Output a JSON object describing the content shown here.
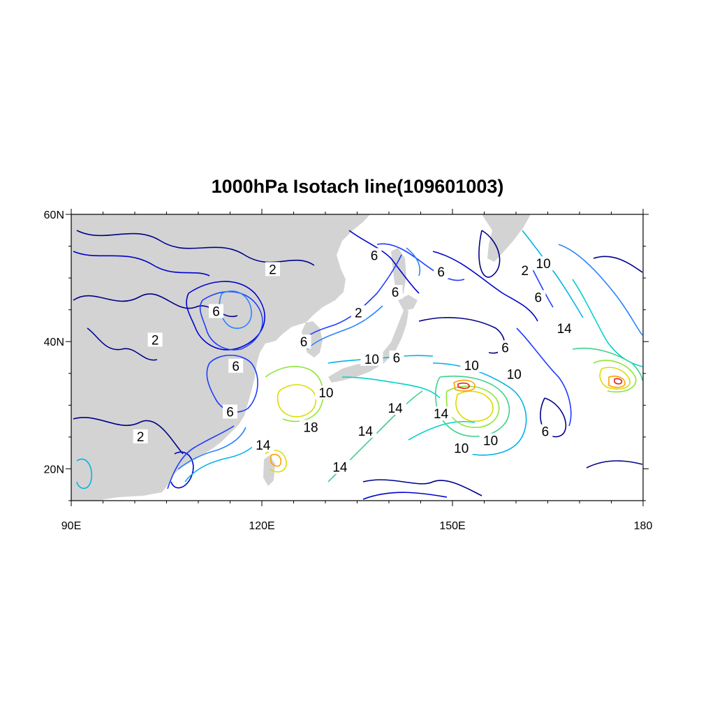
{
  "title": "1000hPa Isotach line(109601003)",
  "map": {
    "projection": "cylindrical-equidistant",
    "lon_range": [
      90,
      180
    ],
    "lat_range": [
      15,
      60
    ],
    "land_color": "#d3d3d3",
    "ocean_color": "#ffffff",
    "lon_ticks": [
      {
        "value": 90,
        "label": "90E"
      },
      {
        "value": 120,
        "label": "120E"
      },
      {
        "value": 150,
        "label": "150E"
      },
      {
        "value": 180,
        "label": "180"
      }
    ],
    "lat_ticks": [
      {
        "value": 20,
        "label": "20N"
      },
      {
        "value": 40,
        "label": "40N"
      },
      {
        "value": 60,
        "label": "60N"
      }
    ],
    "minor_lon_step": 5,
    "minor_lat_step": 5
  },
  "contours": {
    "variable": "wind speed",
    "levels": [
      2,
      4,
      6,
      8,
      10,
      12,
      14,
      16,
      18,
      20,
      22
    ],
    "colors": {
      "2": "#00008b",
      "4": "#0000cd",
      "6": "#1e3cff",
      "8": "#2a82ff",
      "10": "#00b4e6",
      "12": "#00d2c8",
      "14": "#3cd28c",
      "16": "#8ce63c",
      "18": "#dcdc00",
      "20": "#ffa000",
      "22": "#e61e1e"
    }
  },
  "labels": [
    {
      "text": "2",
      "lon": 121.7,
      "lat": 51.4
    },
    {
      "text": "6",
      "lon": 112.8,
      "lat": 44.8
    },
    {
      "text": "2",
      "lon": 103.2,
      "lat": 40.3
    },
    {
      "text": "6",
      "lon": 115.9,
      "lat": 36.2
    },
    {
      "text": "2",
      "lon": 100.9,
      "lat": 25.1
    },
    {
      "text": "6",
      "lon": 115.0,
      "lat": 29.0
    },
    {
      "text": "14",
      "lon": 120.2,
      "lat": 23.8
    },
    {
      "text": "6",
      "lon": 137.7,
      "lat": 53.6
    },
    {
      "text": "6",
      "lon": 141.0,
      "lat": 47.8
    },
    {
      "text": "2",
      "lon": 135.2,
      "lat": 44.6
    },
    {
      "text": "6",
      "lon": 126.6,
      "lat": 40.0
    },
    {
      "text": "6",
      "lon": 148.2,
      "lat": 51.0
    },
    {
      "text": "10",
      "lon": 137.3,
      "lat": 37.3
    },
    {
      "text": "6",
      "lon": 141.2,
      "lat": 37.5
    },
    {
      "text": "10",
      "lon": 153.0,
      "lat": 36.3
    },
    {
      "text": "10",
      "lon": 130.1,
      "lat": 32.0
    },
    {
      "text": "18",
      "lon": 127.7,
      "lat": 26.6
    },
    {
      "text": "14",
      "lon": 136.3,
      "lat": 26.0
    },
    {
      "text": "14",
      "lon": 141.0,
      "lat": 29.6
    },
    {
      "text": "14",
      "lon": 148.2,
      "lat": 28.7
    },
    {
      "text": "14",
      "lon": 132.3,
      "lat": 20.3
    },
    {
      "text": "10",
      "lon": 151.4,
      "lat": 23.3
    },
    {
      "text": "10",
      "lon": 156.0,
      "lat": 24.5
    },
    {
      "text": "6",
      "lon": 158.3,
      "lat": 39.1
    },
    {
      "text": "10",
      "lon": 159.7,
      "lat": 34.9
    },
    {
      "text": "6",
      "lon": 164.6,
      "lat": 25.9
    },
    {
      "text": "2",
      "lon": 161.4,
      "lat": 51.2
    },
    {
      "text": "10",
      "lon": 164.3,
      "lat": 52.3
    },
    {
      "text": "6",
      "lon": 163.5,
      "lat": 47.0
    },
    {
      "text": "14",
      "lon": 167.6,
      "lat": 42.1
    }
  ]
}
